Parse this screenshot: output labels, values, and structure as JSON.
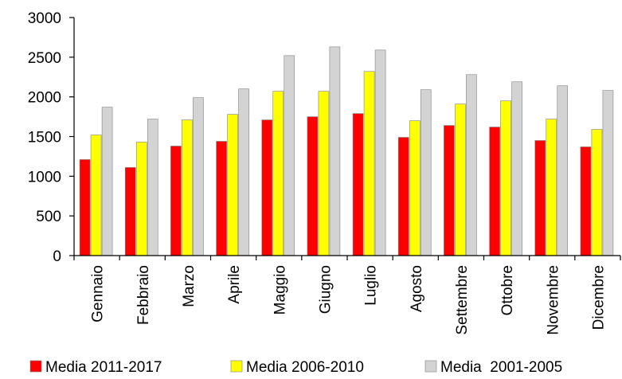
{
  "chart_data": {
    "type": "bar",
    "title": "",
    "xlabel": "",
    "ylabel": "",
    "ylim": [
      0,
      3000
    ],
    "yticks": [
      0,
      500,
      1000,
      1500,
      2000,
      2500,
      3000
    ],
    "grid": false,
    "legend_position": "bottom",
    "categories": [
      "Gennaio",
      "Febbraio",
      "Marzo",
      "Aprile",
      "Maggio",
      "Giugno",
      "Luglio",
      "Agosto",
      "Settembre",
      "Ottobre",
      "Novembre",
      "Dicembre"
    ],
    "series": [
      {
        "name": "Media 2011-2017",
        "color": "#ff0000",
        "values": [
          1210,
          1110,
          1380,
          1440,
          1710,
          1750,
          1790,
          1490,
          1640,
          1620,
          1450,
          1370
        ]
      },
      {
        "name": "Media 2006-2010",
        "color": "#ffff00",
        "values": [
          1520,
          1430,
          1710,
          1780,
          2070,
          2070,
          2320,
          1700,
          1910,
          1950,
          1720,
          1590
        ]
      },
      {
        "name": "Media  2001-2005",
        "color": "#d3d3d3",
        "values": [
          1870,
          1720,
          1990,
          2100,
          2520,
          2630,
          2590,
          2090,
          2280,
          2190,
          2140,
          2080
        ]
      }
    ]
  }
}
